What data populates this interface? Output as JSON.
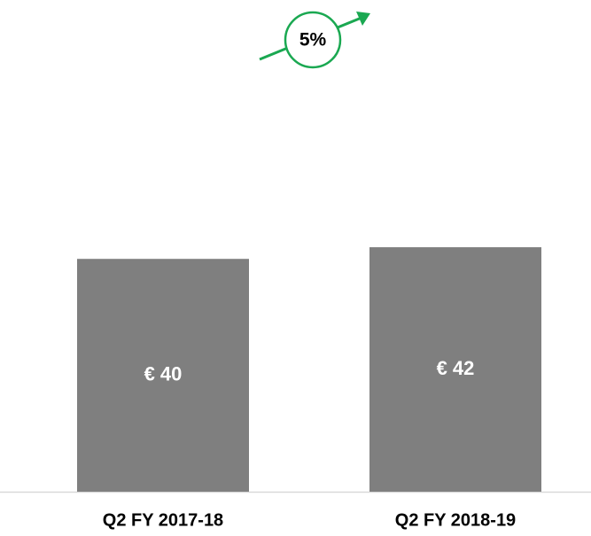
{
  "chart_data": {
    "type": "bar",
    "categories": [
      "Q2 FY 2017-18",
      "Q2 FY 2018-19"
    ],
    "values": [
      40,
      42
    ],
    "value_labels": [
      "€ 40",
      "€ 42"
    ],
    "color": "#7f7f7f",
    "annotation": "5%"
  }
}
